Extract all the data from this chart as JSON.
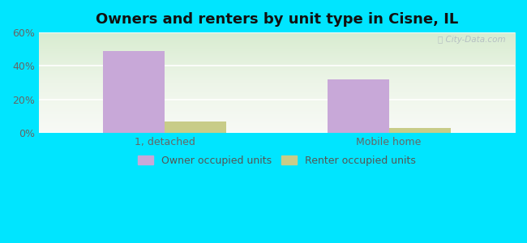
{
  "title": "Owners and renters by unit type in Cisne, IL",
  "categories": [
    "1, detached",
    "Mobile home"
  ],
  "owner_values": [
    49,
    32
  ],
  "renter_values": [
    7,
    3
  ],
  "owner_color": "#c8a8d8",
  "renter_color": "#c8cc88",
  "ylim": [
    0,
    60
  ],
  "yticks": [
    0,
    20,
    40,
    60
  ],
  "ytick_labels": [
    "0%",
    "20%",
    "40%",
    "60%"
  ],
  "title_fontsize": 13,
  "legend_owner": "Owner occupied units",
  "legend_renter": "Renter occupied units",
  "outer_bg": "#00e5ff",
  "bar_width": 0.22,
  "group_positions": [
    0.3,
    1.1
  ]
}
